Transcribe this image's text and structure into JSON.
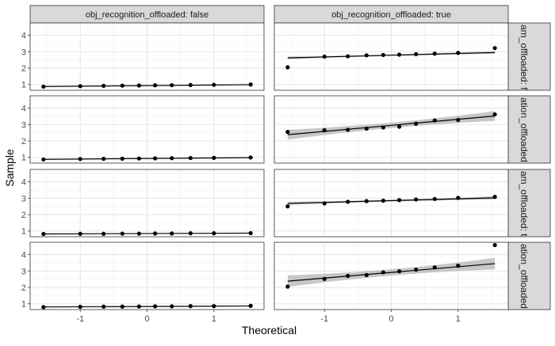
{
  "chart_data": {
    "type": "scatter",
    "subtype": "qq-plot-facet-grid",
    "xlabel": "Theoretical",
    "ylabel": "Sample",
    "x_ticks": [
      -1,
      0,
      1
    ],
    "y_ticks": [
      1,
      2,
      3,
      4
    ],
    "xlim": [
      -1.75,
      1.75
    ],
    "ylim": [
      0.65,
      4.75
    ],
    "grid": true,
    "col_strips": [
      "obj_recognition_offloaded: false",
      "obj_recognition_offloaded: true"
    ],
    "row_strips": [
      "am_offloaded: fa",
      "ation_offloaded: fa",
      "am_offloaded: tr",
      "ation_offloaded: tr"
    ],
    "theoretical_quantiles": [
      -1.55,
      -1.0,
      -0.65,
      -0.37,
      -0.12,
      0.12,
      0.37,
      0.65,
      1.0,
      1.55
    ],
    "panels": [
      {
        "row": 0,
        "col": 0,
        "sample": [
          0.87,
          0.9,
          0.92,
          0.93,
          0.94,
          0.95,
          0.96,
          0.97,
          0.98,
          1.0
        ],
        "line": [
          0.88,
          0.99
        ],
        "band": 0.02
      },
      {
        "row": 0,
        "col": 1,
        "sample": [
          2.05,
          2.7,
          2.72,
          2.78,
          2.8,
          2.82,
          2.85,
          2.88,
          2.93,
          3.22
        ],
        "line": [
          2.62,
          2.95
        ],
        "band": 0.08
      },
      {
        "row": 1,
        "col": 0,
        "sample": [
          0.87,
          0.9,
          0.91,
          0.92,
          0.93,
          0.94,
          0.95,
          0.96,
          0.97,
          0.99
        ],
        "line": [
          0.88,
          0.98
        ],
        "band": 0.02
      },
      {
        "row": 1,
        "col": 1,
        "sample": [
          2.55,
          2.65,
          2.68,
          2.75,
          2.82,
          2.87,
          3.05,
          3.25,
          3.28,
          3.62
        ],
        "line": [
          2.38,
          3.52
        ],
        "band": 0.3
      },
      {
        "row": 2,
        "col": 0,
        "sample": [
          0.82,
          0.83,
          0.83,
          0.84,
          0.84,
          0.85,
          0.85,
          0.86,
          0.86,
          0.87
        ],
        "line": [
          0.82,
          0.87
        ],
        "band": 0.01
      },
      {
        "row": 2,
        "col": 1,
        "sample": [
          2.5,
          2.68,
          2.78,
          2.82,
          2.85,
          2.88,
          2.92,
          2.95,
          3.02,
          3.08
        ],
        "line": [
          2.68,
          3.02
        ],
        "band": 0.1
      },
      {
        "row": 3,
        "col": 0,
        "sample": [
          0.8,
          0.82,
          0.83,
          0.83,
          0.84,
          0.85,
          0.85,
          0.86,
          0.86,
          0.88
        ],
        "line": [
          0.81,
          0.87
        ],
        "band": 0.02
      },
      {
        "row": 3,
        "col": 1,
        "sample": [
          2.05,
          2.52,
          2.7,
          2.75,
          2.92,
          2.98,
          3.08,
          3.22,
          3.32,
          4.58
        ],
        "line": [
          2.38,
          3.45
        ],
        "band": 0.35
      }
    ]
  }
}
